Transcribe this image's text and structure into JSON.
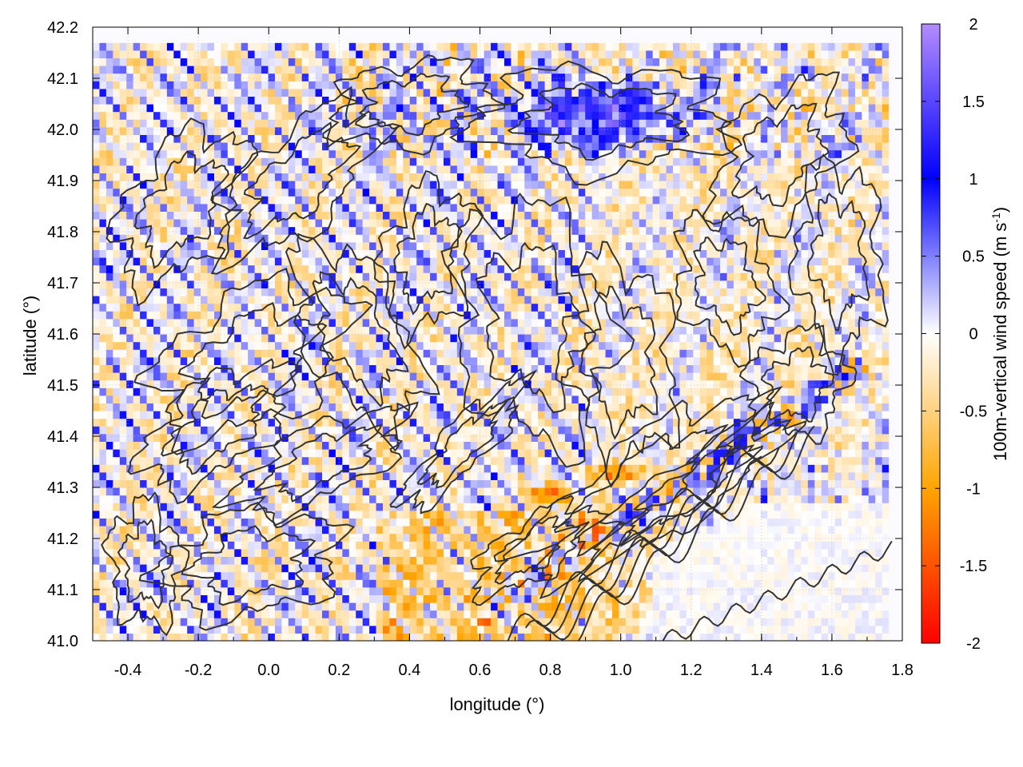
{
  "chart_data": {
    "type": "heatmap",
    "title": "",
    "xlabel": "longitude (°)",
    "ylabel": "latitude (°)",
    "colorbar_label": "100m-vertical wind speed (m s",
    "colorbar_label_exp": "-1",
    "colorbar_label_end": ")",
    "xlim": [
      -0.5,
      1.8
    ],
    "ylim": [
      41.0,
      42.2
    ],
    "zlim": [
      -2,
      2
    ],
    "x_ticks": [
      "-0.4",
      "-0.2",
      "0.0",
      "0.2",
      "0.4",
      "0.6",
      "0.8",
      "1.0",
      "1.2",
      "1.4",
      "1.6",
      "1.8"
    ],
    "x_tick_values": [
      -0.4,
      -0.2,
      0.0,
      0.2,
      0.4,
      0.6,
      0.8,
      1.0,
      1.2,
      1.4,
      1.6,
      1.8
    ],
    "y_ticks": [
      "41.0",
      "41.1",
      "41.2",
      "41.3",
      "41.4",
      "41.5",
      "41.6",
      "41.7",
      "41.8",
      "41.9",
      "42.0",
      "42.1",
      "42.2"
    ],
    "y_tick_values": [
      41.0,
      41.1,
      41.2,
      41.3,
      41.4,
      41.5,
      41.6,
      41.7,
      41.8,
      41.9,
      42.0,
      42.1,
      42.2
    ],
    "colorbar_ticks": [
      "2",
      "1.5",
      "1",
      "0.5",
      "0",
      "-0.5",
      "-1",
      "-1.5",
      "-2"
    ],
    "colorbar_tick_values": [
      2,
      1.5,
      1,
      0.5,
      0,
      -0.5,
      -1,
      -1.5,
      -2
    ],
    "colormap": [
      {
        "value": -2.0,
        "color": "#ff0000"
      },
      {
        "value": -1.0,
        "color": "#ffa500"
      },
      {
        "value": 0.0,
        "color": "#ffffff"
      },
      {
        "value": 1.0,
        "color": "#0000ff"
      },
      {
        "value": 2.0,
        "color": "#b38cff"
      }
    ],
    "grid": true,
    "contour_color": "#333333",
    "features": {
      "updraft_streaks_direction": "NW-SE diagonal bands over western half",
      "strong_downdraft": {
        "lon": 0.8,
        "lat": 41.28,
        "value": -1.8
      },
      "strong_updraft": {
        "lon": 0.95,
        "lat": 42.02,
        "value": 1.8
      },
      "sea_region": "smooth near-zero values in south-east corner (lon > 1.1, lat < 41.25)"
    }
  }
}
